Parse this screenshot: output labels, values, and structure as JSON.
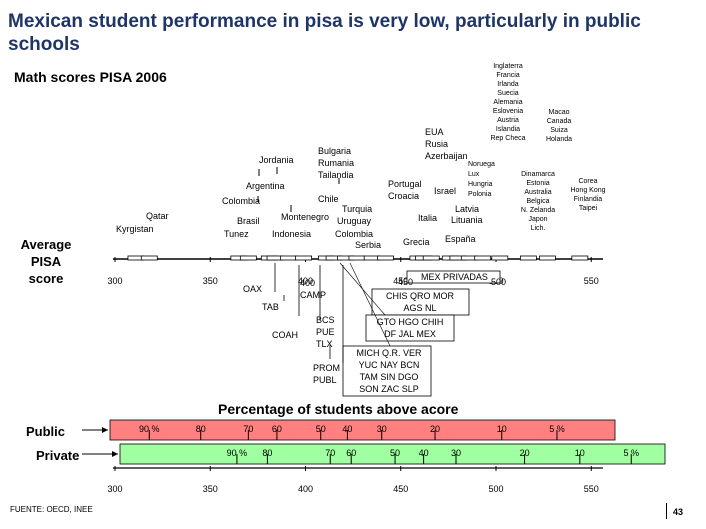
{
  "title": "Mexican student performance in pisa is very low, particularly in public schools",
  "subtitle": "Math scores PISA 2006",
  "axis_title_line1": "Average PISA",
  "axis_title_line2": "score",
  "pct_title": "Percentage of students above acore",
  "public_label": "Public",
  "private_label": "Private",
  "source": "FUENTE: OECD, INEE",
  "page_number": "43",
  "colors": {
    "public_bar": "#ff8080",
    "private_bar": "#a0ffa0",
    "title": "#1f3566"
  },
  "chart_data": {
    "type": "annotated-axis",
    "axis": {
      "min": 300,
      "max": 550,
      "ticks": [
        300,
        350,
        400,
        450,
        500,
        550
      ]
    },
    "countries": [
      {
        "lines": [
          "Kyrgistan"
        ],
        "score": 311
      },
      {
        "lines": [
          "Qatar"
        ],
        "score": 318
      },
      {
        "lines": [
          "Tunez"
        ],
        "score": 365
      },
      {
        "lines": [
          "Brasil"
        ],
        "score": 370
      },
      {
        "lines": [
          "Colombia"
        ],
        "score": 370
      },
      {
        "lines": [
          "Argentina"
        ],
        "score": 381
      },
      {
        "lines": [
          "Jordania"
        ],
        "score": 384
      },
      {
        "lines": [
          "Indonesia"
        ],
        "score": 391
      },
      {
        "lines": [
          "Montenegro"
        ],
        "score": 399
      },
      {
        "lines": [
          "Chile"
        ],
        "score": 411
      },
      {
        "lines": [
          "Uruguay"
        ],
        "score": 427
      },
      {
        "lines": [
          "Turquia"
        ],
        "score": 424
      },
      {
        "lines": [
          "Colombia"
        ],
        "score": 421
      },
      {
        "lines": [
          "Serbia"
        ],
        "score": 435
      },
      {
        "lines": [
          "Bulgaria",
          "Rumania",
          "Tailandia"
        ],
        "score": 415
      },
      {
        "lines": [
          "Israel"
        ],
        "score": 442
      },
      {
        "lines": [
          "EUA",
          "Rusia",
          "Azerbaijan"
        ],
        "score": 476
      },
      {
        "lines": [
          "Grecia"
        ],
        "score": 459
      },
      {
        "lines": [
          "España"
        ],
        "score": 480
      },
      {
        "lines": [
          "Italia"
        ],
        "score": 462
      },
      {
        "lines": [
          "Lituania"
        ],
        "score": 486
      },
      {
        "lines": [
          "Latvia"
        ],
        "score": 486
      },
      {
        "lines": [
          "Portugal",
          "Croacia"
        ],
        "score": 466
      },
      {
        "lines": [
          "Noruega",
          "Lux",
          "Hungria",
          "Polonia"
        ],
        "score": 493
      },
      {
        "lines": [
          "Inglaterra",
          "Francia",
          "Irlanda",
          "Suecia",
          "Alemania",
          "Eslovenia",
          "Austria",
          "Islandia",
          "Rep Checa"
        ],
        "score": 502
      },
      {
        "lines": [
          "Dinamarca",
          "Estonia",
          "Australia",
          "Belgica",
          "N. Zelanda",
          "Japon",
          "Lich."
        ],
        "score": 517
      },
      {
        "lines": [
          "Macao",
          "Canada",
          "Suiza",
          "Holanda"
        ],
        "score": 527
      },
      {
        "lines": [
          "Corea",
          "Hong Kong",
          "Finlandia",
          "Taipei"
        ],
        "score": 544
      }
    ],
    "mexico_states": [
      {
        "lines": [
          "OAX"
        ],
        "score": 374
      },
      {
        "lines": [
          "TAB"
        ],
        "score": 380
      },
      {
        "lines": [
          "COAH"
        ],
        "score": 392
      },
      {
        "lines": [
          "400",
          "CAMP"
        ],
        "score": 400
      },
      {
        "lines": [
          "BCS",
          "PUE",
          "TLX"
        ],
        "score": 408
      },
      {
        "lines": [
          "PROM",
          "PUBL"
        ],
        "score": 412
      },
      {
        "lines": [
          "MEX PRIVADAS"
        ],
        "score": 476
      },
      {
        "lines": [
          "CHIS QRO MOR",
          "AGS NL"
        ],
        "score": 435
      },
      {
        "lines": [
          "GTO HGO CHIH",
          "DF JAL MEX"
        ],
        "score": 428
      },
      {
        "lines": [
          "MICH Q.R. VER",
          "YUC NAY BCN",
          "TAM SIN DGO",
          "SON ZAC SLP"
        ],
        "score": 418
      }
    ],
    "inline_labels": [
      "450",
      "500"
    ],
    "percentage_public": [
      {
        "label": "90 %",
        "score": 318
      },
      {
        "label": "80",
        "score": 345
      },
      {
        "label": "70",
        "score": 370
      },
      {
        "label": "60",
        "score": 385
      },
      {
        "label": "50",
        "score": 408
      },
      {
        "label": "40",
        "score": 422
      },
      {
        "label": "30",
        "score": 440
      },
      {
        "label": "20",
        "score": 468
      },
      {
        "label": "10",
        "score": 503
      },
      {
        "label": "5 %",
        "score": 532
      }
    ],
    "percentage_private": [
      {
        "label": "90 %",
        "score": 364
      },
      {
        "label": "80",
        "score": 380
      },
      {
        "label": "70",
        "score": 413
      },
      {
        "label": "60",
        "score": 424
      },
      {
        "label": "50",
        "score": 447
      },
      {
        "label": "40",
        "score": 462
      },
      {
        "label": "30",
        "score": 479
      },
      {
        "label": "20",
        "score": 515
      },
      {
        "label": "10",
        "score": 544
      },
      {
        "label": "5 %",
        "score": 571
      }
    ]
  }
}
